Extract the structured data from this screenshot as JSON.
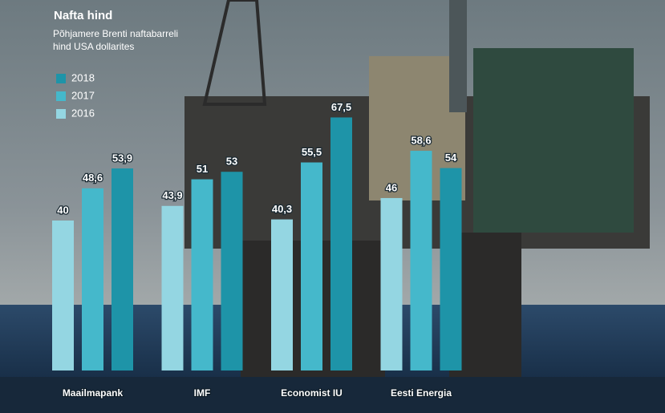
{
  "chart_data": {
    "type": "bar",
    "title": "Nafta hind",
    "subtitle": "Põhjamere Brenti naftabarreli hind USA dollarites",
    "categories": [
      "Maailmapank",
      "IMF",
      "Economist IU",
      "Eesti Energia"
    ],
    "series": [
      {
        "name": "2016",
        "color": "#94d6e2",
        "values": [
          40,
          43.9,
          40.3,
          46
        ],
        "value_labels": [
          "40",
          "43,9",
          "40,3",
          "46"
        ]
      },
      {
        "name": "2017",
        "color": "#45b8cb",
        "values": [
          48.6,
          51,
          55.5,
          58.6
        ],
        "value_labels": [
          "48,6",
          "51",
          "55,5",
          "58,6"
        ]
      },
      {
        "name": "2018",
        "color": "#1e94a8",
        "values": [
          53.9,
          53,
          67.5,
          54
        ],
        "value_labels": [
          "53,9",
          "53",
          "67,5",
          "54"
        ]
      }
    ]
  }
}
